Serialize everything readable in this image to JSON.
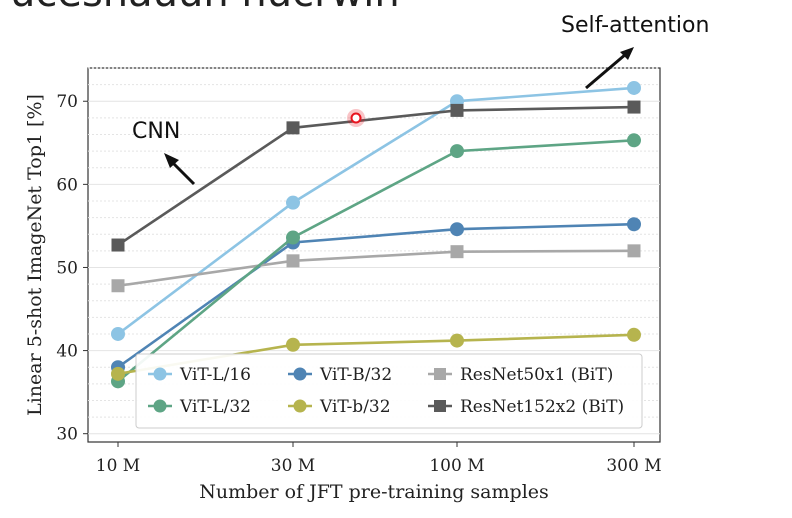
{
  "header_fragment": "ucesnauun nucrwin",
  "annotations": {
    "cnn_label": "CNN",
    "self_attention_label": "Self-attention"
  },
  "colors": {
    "vit_l16": "#8dc4e4",
    "vit_b32": "#4f84b4",
    "resnet50": "#a8a8a8",
    "vit_l32": "#5ea585",
    "vit_b_small32": "#b6b44e",
    "resnet152": "#5a5a5a",
    "cursor": "#e8141e"
  },
  "chart_data": {
    "type": "line",
    "xlabel": "Number of JFT pre-training samples",
    "ylabel": "Linear 5-shot ImageNet Top1 [%]",
    "x_scale": "log",
    "x": [
      10,
      30,
      100,
      300
    ],
    "x_tick_labels": [
      "10 M",
      "30 M",
      "100 M",
      "300 M"
    ],
    "y_ticks": [
      30,
      40,
      50,
      60,
      70
    ],
    "ylim": [
      29,
      74
    ],
    "grid": true,
    "legend_position": "bottom",
    "series": [
      {
        "name": "ViT-L/16",
        "color_key": "vit_l16",
        "marker": "circle",
        "values": [
          42.0,
          57.8,
          70.0,
          71.6
        ]
      },
      {
        "name": "ViT-B/32",
        "color_key": "vit_b32",
        "marker": "circle",
        "values": [
          38.0,
          53.0,
          54.6,
          55.2
        ]
      },
      {
        "name": "ResNet50x1 (BiT)",
        "color_key": "resnet50",
        "marker": "square",
        "values": [
          47.8,
          50.8,
          51.9,
          52.0
        ]
      },
      {
        "name": "ViT-L/32",
        "color_key": "vit_l32",
        "marker": "circle",
        "values": [
          36.3,
          53.6,
          64.0,
          65.3
        ]
      },
      {
        "name": "ViT-b/32",
        "color_key": "vit_b_small32",
        "marker": "circle",
        "values": [
          37.2,
          40.7,
          41.2,
          41.9
        ]
      },
      {
        "name": "ResNet152x2 (BiT)",
        "color_key": "resnet152",
        "marker": "square",
        "values": [
          52.7,
          66.8,
          68.9,
          69.3
        ]
      }
    ]
  }
}
